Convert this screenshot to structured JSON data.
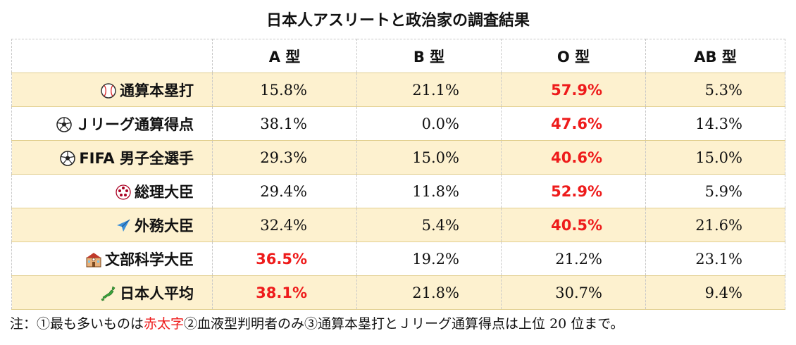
{
  "title": "日本人アスリートと政治家の調査結果",
  "colors": {
    "highlight_row": "#fdf1cf",
    "emphasis": "#ee1b1b",
    "grid": "#c8c8c8"
  },
  "table": {
    "headers": [
      "",
      "A 型",
      "B 型",
      "O 型",
      "AB 型"
    ],
    "rows": [
      {
        "icon": "baseball-icon",
        "label": "通算本塁打",
        "values": [
          "15.8%",
          "21.1%",
          "57.9%",
          "5.3%"
        ],
        "emphasis": [
          false,
          false,
          true,
          false
        ]
      },
      {
        "icon": "soccer-ball-icon",
        "label": "Ｊリーグ通算得点",
        "values": [
          "38.1%",
          "0.0%",
          "47.6%",
          "14.3%"
        ],
        "emphasis": [
          false,
          false,
          true,
          false
        ]
      },
      {
        "icon": "soccer-ball-icon",
        "label": "FIFA 男子全選手",
        "values": [
          "29.3%",
          "15.0%",
          "40.6%",
          "15.0%"
        ],
        "emphasis": [
          false,
          false,
          true,
          false
        ]
      },
      {
        "icon": "japan-crest-icon",
        "label": "総理大臣",
        "values": [
          "29.4%",
          "11.8%",
          "52.9%",
          "5.9%"
        ],
        "emphasis": [
          false,
          false,
          true,
          false
        ]
      },
      {
        "icon": "airplane-icon",
        "label": "外務大臣",
        "values": [
          "32.4%",
          "5.4%",
          "40.5%",
          "21.6%"
        ],
        "emphasis": [
          false,
          false,
          true,
          false
        ]
      },
      {
        "icon": "school-icon",
        "label": "文部科学大臣",
        "values": [
          "36.5%",
          "19.2%",
          "21.2%",
          "23.1%"
        ],
        "emphasis": [
          true,
          false,
          false,
          false
        ]
      },
      {
        "icon": "japan-map-icon",
        "label": "日本人平均",
        "values": [
          "38.1%",
          "21.8%",
          "30.7%",
          "9.4%"
        ],
        "emphasis": [
          true,
          false,
          false,
          false
        ]
      }
    ]
  },
  "note": {
    "prefix": "注：①最も多いものは",
    "red": "赤太字",
    "suffix": "②血液型判明者のみ③通算本塁打とＪリーグ通算得点は上位 20 位まで。"
  }
}
